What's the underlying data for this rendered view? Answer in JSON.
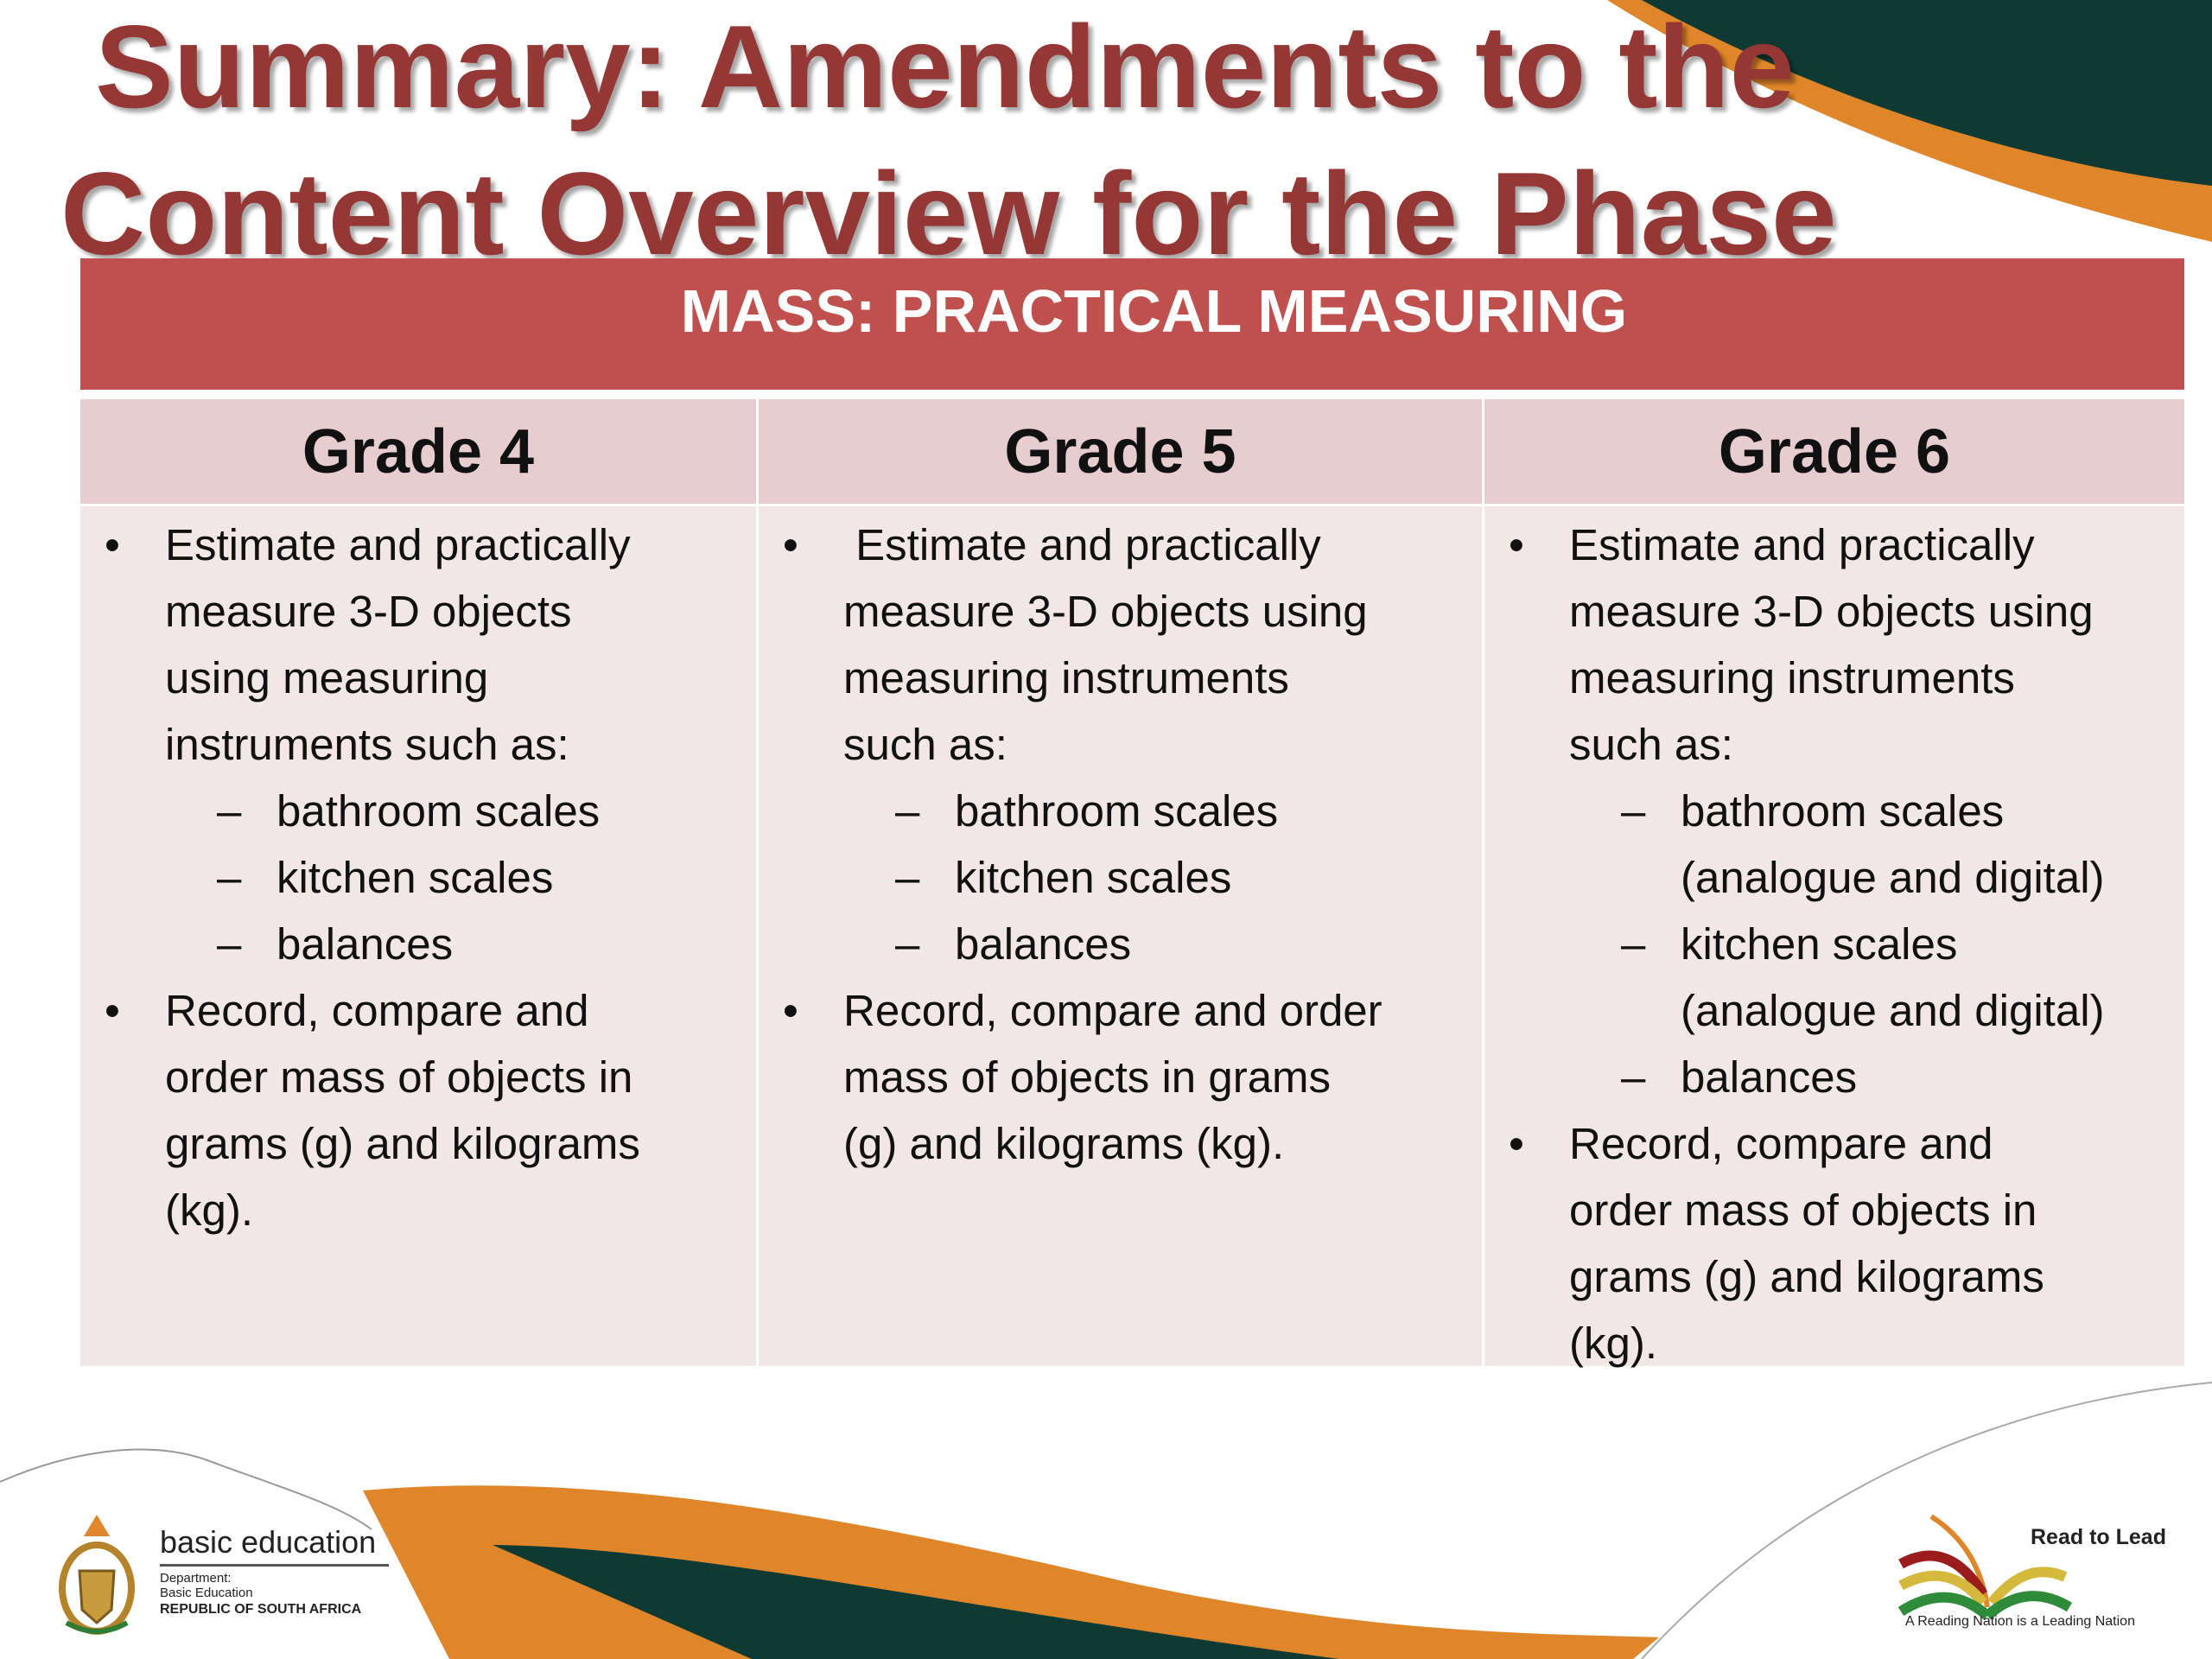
{
  "title": {
    "line1": "Summary: Amendments to the",
    "line2": "Content Overview for the Phase"
  },
  "banner": "MASS: PRACTICAL MEASURING",
  "columns": [
    {
      "grade": "Grade 4",
      "items": [
        {
          "type": "bullet",
          "lines": [
            "Estimate and practically",
            "measure 3-D objects",
            "using measuring",
            "instruments such as:"
          ]
        },
        {
          "type": "dash",
          "lines": [
            "bathroom scales"
          ]
        },
        {
          "type": "dash",
          "lines": [
            "kitchen scales"
          ]
        },
        {
          "type": "dash",
          "lines": [
            "balances"
          ]
        },
        {
          "type": "bullet",
          "lines": [
            "Record, compare and",
            "order mass of objects in",
            "grams (g) and kilograms",
            "(kg)."
          ]
        }
      ]
    },
    {
      "grade": "Grade 5",
      "items": [
        {
          "type": "bullet",
          "lines": [
            " Estimate and practically",
            "measure 3-D objects using",
            "measuring instruments",
            "such as:"
          ]
        },
        {
          "type": "dash",
          "lines": [
            "bathroom scales"
          ]
        },
        {
          "type": "dash",
          "lines": [
            "kitchen scales"
          ]
        },
        {
          "type": "dash",
          "lines": [
            "balances"
          ]
        },
        {
          "type": "bullet",
          "lines": [
            "Record, compare and order",
            "mass of objects in grams",
            "(g) and kilograms (kg)."
          ]
        }
      ]
    },
    {
      "grade": "Grade 6",
      "items": [
        {
          "type": "bullet",
          "lines": [
            "Estimate and practically",
            "measure 3-D objects using",
            "measuring instruments",
            "such as:"
          ]
        },
        {
          "type": "dash",
          "lines": [
            "bathroom scales",
            "(analogue and digital)"
          ]
        },
        {
          "type": "dash",
          "lines": [
            "kitchen scales",
            "(analogue and digital)"
          ]
        },
        {
          "type": "dash",
          "lines": [
            "balances"
          ]
        },
        {
          "type": "bullet",
          "lines": [
            "Record, compare and",
            "order mass of objects in",
            "grams (g) and kilograms",
            "(kg)."
          ]
        }
      ]
    }
  ],
  "markers": {
    "bullet": "•",
    "dash": "–"
  },
  "footer": {
    "left_logo": {
      "name": "basic education",
      "line1": "Department:",
      "line2": "Basic Education",
      "line3": "REPUBLIC OF SOUTH AFRICA"
    },
    "right_logo": {
      "name": "Read to Lead",
      "tagline": "A Reading Nation is a Leading Nation"
    }
  },
  "colors": {
    "title": "#953735",
    "banner": "#c0504d",
    "grade_header": "#e8cdce",
    "cell": "#f2e6e6",
    "orange": "#e0862a",
    "dark_green": "#0f3a33"
  }
}
